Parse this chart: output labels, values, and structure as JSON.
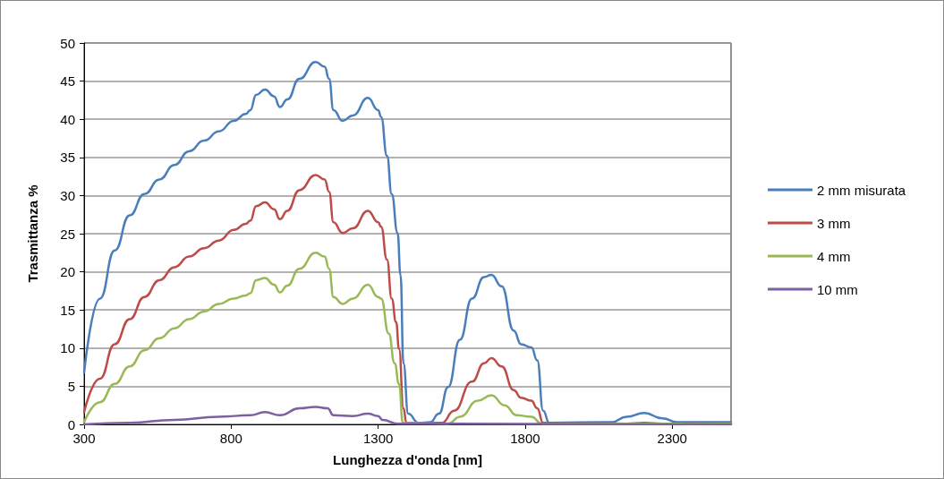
{
  "chart_data": {
    "type": "line",
    "xlabel": "Lunghezza d'onda [nm]",
    "ylabel": "Trasmittanza %",
    "xlim": [
      300,
      2500
    ],
    "xticks": [
      300,
      800,
      1300,
      1800,
      2300
    ],
    "ylim": [
      0,
      50
    ],
    "yticks": [
      0,
      5,
      10,
      15,
      20,
      25,
      30,
      35,
      40,
      45,
      50
    ],
    "grid": "y",
    "legend": "right",
    "marker": "none",
    "line_style": "solid",
    "series": [
      {
        "name": "2 mm misurata",
        "color": "#4a7ebb",
        "x": [
          300,
          354,
          404,
          455,
          505,
          556,
          607,
          657,
          708,
          758,
          809,
          850,
          865,
          885,
          915,
          946,
          966,
          991,
          1032,
          1087,
          1118,
          1133,
          1148,
          1179,
          1214,
          1265,
          1300,
          1310,
          1330,
          1346,
          1366,
          1376,
          1386,
          1402,
          1437,
          1477,
          1507,
          1538,
          1578,
          1619,
          1660,
          1685,
          1720,
          1761,
          1786,
          1821,
          1841,
          1861,
          1882,
          2094,
          2145,
          2205,
          2266,
          2317,
          2500
        ],
        "values": [
          6.8,
          16.5,
          22.8,
          27.4,
          30.2,
          32.1,
          34.0,
          35.8,
          37.2,
          38.4,
          39.8,
          40.7,
          41.2,
          43.2,
          43.9,
          43.0,
          41.6,
          42.6,
          45.3,
          47.5,
          46.9,
          45.3,
          41.2,
          39.8,
          40.5,
          42.8,
          41.2,
          40.3,
          35.2,
          30.2,
          25.1,
          19.6,
          8.0,
          1.4,
          0.2,
          0.3,
          1.4,
          4.9,
          11.1,
          16.5,
          19.3,
          19.6,
          18.1,
          12.3,
          10.5,
          10.1,
          8.4,
          1.8,
          0.2,
          0.3,
          1.0,
          1.5,
          0.8,
          0.3,
          0.3
        ]
      },
      {
        "name": "3 mm",
        "color": "#be4b48",
        "x": [
          300,
          354,
          404,
          455,
          505,
          556,
          607,
          657,
          708,
          758,
          809,
          850,
          865,
          885,
          915,
          946,
          966,
          991,
          1032,
          1087,
          1118,
          1133,
          1148,
          1179,
          1214,
          1265,
          1300,
          1310,
          1330,
          1346,
          1361,
          1371,
          1386,
          1396,
          1517,
          1558,
          1619,
          1660,
          1685,
          1720,
          1761,
          1786,
          1821,
          1841,
          1861,
          2145,
          2205,
          2266,
          2500
        ],
        "values": [
          1.6,
          6.0,
          10.5,
          13.8,
          16.7,
          18.9,
          20.6,
          22.0,
          23.1,
          24.1,
          25.5,
          26.3,
          26.7,
          28.6,
          29.1,
          28.2,
          26.9,
          28.0,
          30.7,
          32.7,
          32.1,
          30.5,
          26.5,
          25.1,
          25.7,
          28.0,
          26.5,
          25.9,
          21.6,
          16.5,
          13.4,
          9.9,
          2.1,
          0.2,
          0.2,
          1.8,
          5.6,
          8.0,
          8.7,
          7.6,
          4.5,
          3.5,
          3.1,
          2.1,
          0.2,
          0.1,
          0.2,
          0.1,
          0.1
        ]
      },
      {
        "name": "4 mm",
        "color": "#98b954",
        "x": [
          300,
          354,
          404,
          455,
          505,
          556,
          607,
          657,
          708,
          758,
          809,
          850,
          865,
          885,
          915,
          946,
          966,
          991,
          1032,
          1087,
          1118,
          1133,
          1148,
          1179,
          1214,
          1265,
          1300,
          1310,
          1336,
          1356,
          1371,
          1384,
          1538,
          1578,
          1639,
          1685,
          1730,
          1771,
          1821,
          1856,
          2500
        ],
        "values": [
          0.3,
          2.9,
          5.3,
          7.6,
          9.7,
          11.3,
          12.6,
          13.8,
          14.8,
          15.8,
          16.5,
          16.9,
          17.2,
          18.9,
          19.2,
          18.3,
          17.3,
          18.2,
          20.4,
          22.5,
          22.0,
          20.4,
          16.7,
          15.8,
          16.5,
          18.3,
          16.7,
          16.5,
          11.9,
          8.0,
          5.3,
          0.2,
          0.1,
          1.0,
          3.1,
          3.8,
          2.5,
          1.2,
          1.0,
          0.1,
          0.1
        ]
      },
      {
        "name": "10 mm",
        "color": "#7d60a0",
        "x": [
          300,
          455,
          607,
          758,
          865,
          915,
          966,
          1032,
          1087,
          1128,
          1148,
          1214,
          1265,
          1300,
          1315,
          1366,
          2500
        ],
        "values": [
          0,
          0.2,
          0.6,
          1.0,
          1.2,
          1.6,
          1.2,
          2.1,
          2.3,
          2.1,
          1.2,
          1.1,
          1.4,
          1.1,
          0.6,
          0.1,
          0
        ]
      }
    ]
  }
}
